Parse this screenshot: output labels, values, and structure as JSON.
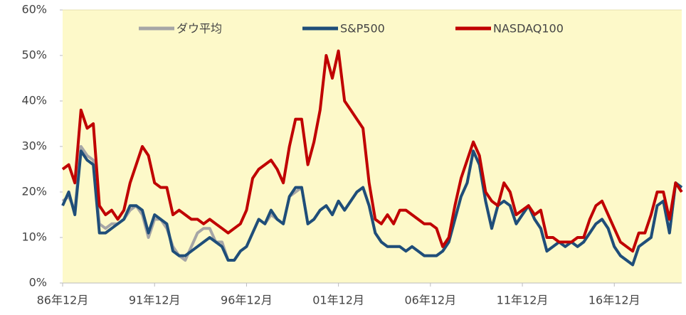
{
  "chart_data": {
    "type": "line",
    "categories": [
      "86年12月",
      null,
      null,
      null,
      null,
      null,
      null,
      null,
      null,
      null,
      null,
      null,
      null,
      null,
      null,
      "91年12月",
      null,
      null,
      null,
      null,
      null,
      null,
      null,
      null,
      null,
      null,
      null,
      null,
      null,
      null,
      "96年12月",
      null,
      null,
      null,
      null,
      null,
      null,
      null,
      null,
      null,
      null,
      null,
      null,
      null,
      null,
      "01年12月",
      null,
      null,
      null,
      null,
      null,
      null,
      null,
      null,
      null,
      null,
      null,
      null,
      null,
      null,
      "06年12月",
      null,
      null,
      null,
      null,
      null,
      null,
      null,
      null,
      null,
      null,
      null,
      null,
      null,
      null,
      "11年12月",
      null,
      null,
      null,
      null,
      null,
      null,
      null,
      null,
      null,
      null,
      null,
      null,
      null,
      null,
      "16年12月",
      null,
      null,
      null,
      null,
      null,
      null,
      null,
      null,
      null,
      null,
      null
    ],
    "series": [
      {
        "name": "ダウ平均",
        "color": "#a6a6a6",
        "values": [
          18,
          19,
          16,
          30,
          28,
          27,
          13,
          12,
          13,
          13,
          14,
          16,
          17,
          15,
          10,
          14,
          14,
          12,
          8,
          6,
          5,
          8,
          11,
          12,
          12,
          9,
          9,
          5,
          5,
          7,
          8,
          11,
          14,
          13,
          15,
          14,
          13,
          19,
          20,
          21,
          13,
          14,
          16,
          17,
          15,
          18,
          16,
          18,
          20,
          21,
          17,
          11,
          9,
          8,
          8,
          8,
          7,
          8,
          7,
          6,
          6,
          6,
          7,
          9,
          14,
          19,
          22,
          29,
          26,
          18,
          12,
          17,
          18,
          17,
          13,
          15,
          17,
          14,
          12,
          7,
          8,
          9,
          8,
          9,
          8,
          9,
          11,
          13,
          14,
          12,
          8,
          6,
          5,
          4,
          8,
          9,
          10,
          17,
          18,
          11,
          22,
          21
        ]
      },
      {
        "name": "S&P500",
        "color": "#1f4e79",
        "values": [
          17,
          20,
          15,
          29,
          27,
          26,
          11,
          11,
          12,
          13,
          14,
          17,
          17,
          16,
          11,
          15,
          14,
          13,
          7,
          6,
          6,
          7,
          8,
          9,
          10,
          9,
          8,
          5,
          5,
          7,
          8,
          11,
          14,
          13,
          16,
          14,
          13,
          19,
          21,
          21,
          13,
          14,
          16,
          17,
          15,
          18,
          16,
          18,
          20,
          21,
          17,
          11,
          9,
          8,
          8,
          8,
          7,
          8,
          7,
          6,
          6,
          6,
          7,
          9,
          14,
          19,
          22,
          29,
          26,
          18,
          12,
          17,
          18,
          17,
          13,
          15,
          17,
          14,
          12,
          7,
          8,
          9,
          8,
          9,
          8,
          9,
          11,
          13,
          14,
          12,
          8,
          6,
          5,
          4,
          8,
          9,
          10,
          17,
          18,
          11,
          22,
          21
        ]
      },
      {
        "name": "NASDAQ100",
        "color": "#c00000",
        "values": [
          25,
          26,
          22,
          38,
          34,
          35,
          17,
          15,
          16,
          14,
          16,
          22,
          26,
          30,
          28,
          22,
          21,
          21,
          15,
          16,
          15,
          14,
          14,
          13,
          14,
          13,
          12,
          11,
          12,
          13,
          16,
          23,
          25,
          26,
          27,
          25,
          22,
          30,
          36,
          36,
          26,
          31,
          38,
          50,
          45,
          51,
          40,
          38,
          36,
          34,
          22,
          14,
          13,
          15,
          13,
          16,
          16,
          15,
          14,
          13,
          13,
          12,
          8,
          10,
          17,
          23,
          27,
          31,
          28,
          20,
          18,
          17,
          22,
          20,
          15,
          16,
          17,
          15,
          16,
          10,
          10,
          9,
          9,
          9,
          10,
          10,
          14,
          17,
          18,
          15,
          12,
          9,
          8,
          7,
          11,
          11,
          15,
          20,
          20,
          14,
          22,
          20
        ]
      }
    ],
    "ylim": [
      0,
      60
    ],
    "yticks": [
      {
        "value": 0,
        "label": "0%"
      },
      {
        "value": 10,
        "label": "10%"
      },
      {
        "value": 20,
        "label": "20%"
      },
      {
        "value": 30,
        "label": "30%"
      },
      {
        "value": 40,
        "label": "40%"
      },
      {
        "value": 50,
        "label": "50%"
      },
      {
        "value": 60,
        "label": "60%"
      }
    ],
    "legend": "top"
  }
}
